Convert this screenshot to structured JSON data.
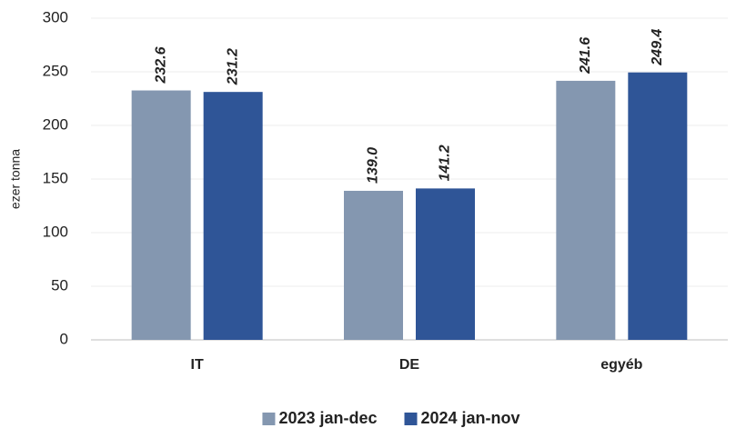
{
  "chart_data": {
    "type": "bar",
    "y_label": "ezer tonna",
    "categories": [
      "IT",
      "DE",
      "egyéb"
    ],
    "series": [
      {
        "name": "2023 jan-dec",
        "color": "#8497b0",
        "values": [
          232.6,
          139,
          241.6
        ],
        "value_labels": [
          "232.6",
          "139.0",
          "241.6"
        ]
      },
      {
        "name": "2024 jan-nov",
        "color": "#2f5597",
        "values": [
          231.2,
          141.2,
          249.4
        ],
        "value_labels": [
          "231.2",
          "141.2",
          "249.4"
        ]
      }
    ],
    "ylim": [
      0,
      300
    ],
    "yticks": [
      0,
      50,
      100,
      150,
      200,
      250,
      300
    ],
    "grid": true,
    "legend": "bottom"
  }
}
